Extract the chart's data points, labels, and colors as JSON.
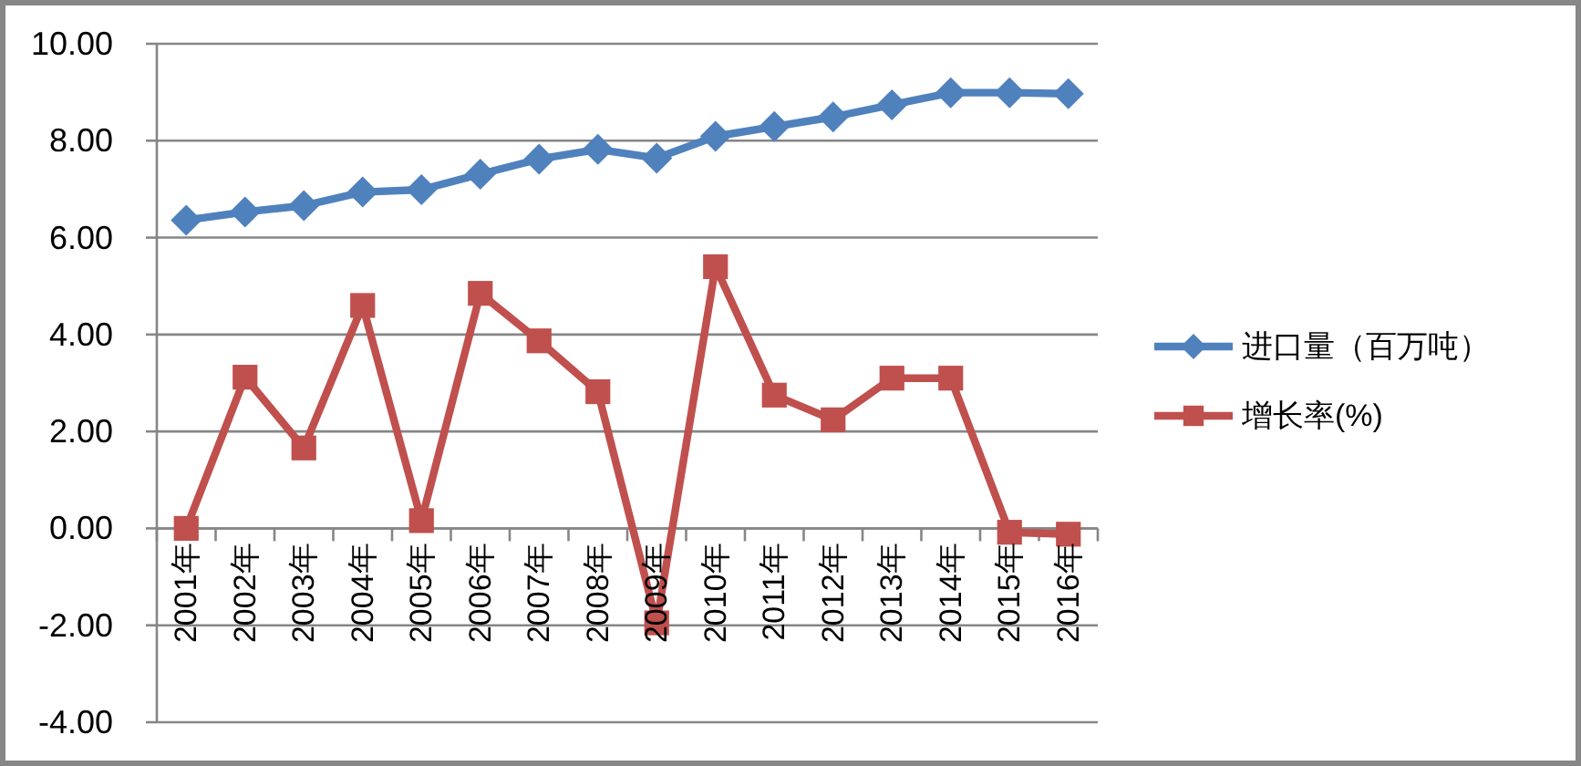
{
  "chart_data": {
    "type": "line",
    "categories": [
      "2001年",
      "2002年",
      "2003年",
      "2004年",
      "2005年",
      "2006年",
      "2007年",
      "2008年",
      "2009年",
      "2010年",
      "2011年",
      "2012年",
      "2013年",
      "2014年",
      "2015年",
      "2016年"
    ],
    "series": [
      {
        "name": "进口量（百万吨）",
        "color": "#4f81bd",
        "marker": "diamond",
        "values": [
          6.36,
          6.53,
          6.66,
          6.94,
          6.99,
          7.31,
          7.62,
          7.82,
          7.64,
          8.09,
          8.29,
          8.49,
          8.74,
          8.99,
          8.99,
          8.97
        ]
      },
      {
        "name": "增长率(%)",
        "color": "#c0504d",
        "marker": "square",
        "values": [
          0.0,
          3.12,
          1.66,
          4.6,
          0.16,
          4.85,
          3.87,
          2.82,
          -1.95,
          5.4,
          2.75,
          2.24,
          3.1,
          3.1,
          -0.08,
          -0.12
        ]
      }
    ],
    "ylim": [
      -4,
      10
    ],
    "yticks": [
      {
        "value": -4,
        "label": "-4.00"
      },
      {
        "value": -2,
        "label": "-2.00"
      },
      {
        "value": 0,
        "label": "0.00"
      },
      {
        "value": 2,
        "label": "2.00"
      },
      {
        "value": 4,
        "label": "4.00"
      },
      {
        "value": 6,
        "label": "6.00"
      },
      {
        "value": 8,
        "label": "8.00"
      },
      {
        "value": 10,
        "label": "10.00"
      }
    ],
    "grid": "y",
    "legend": "right"
  }
}
